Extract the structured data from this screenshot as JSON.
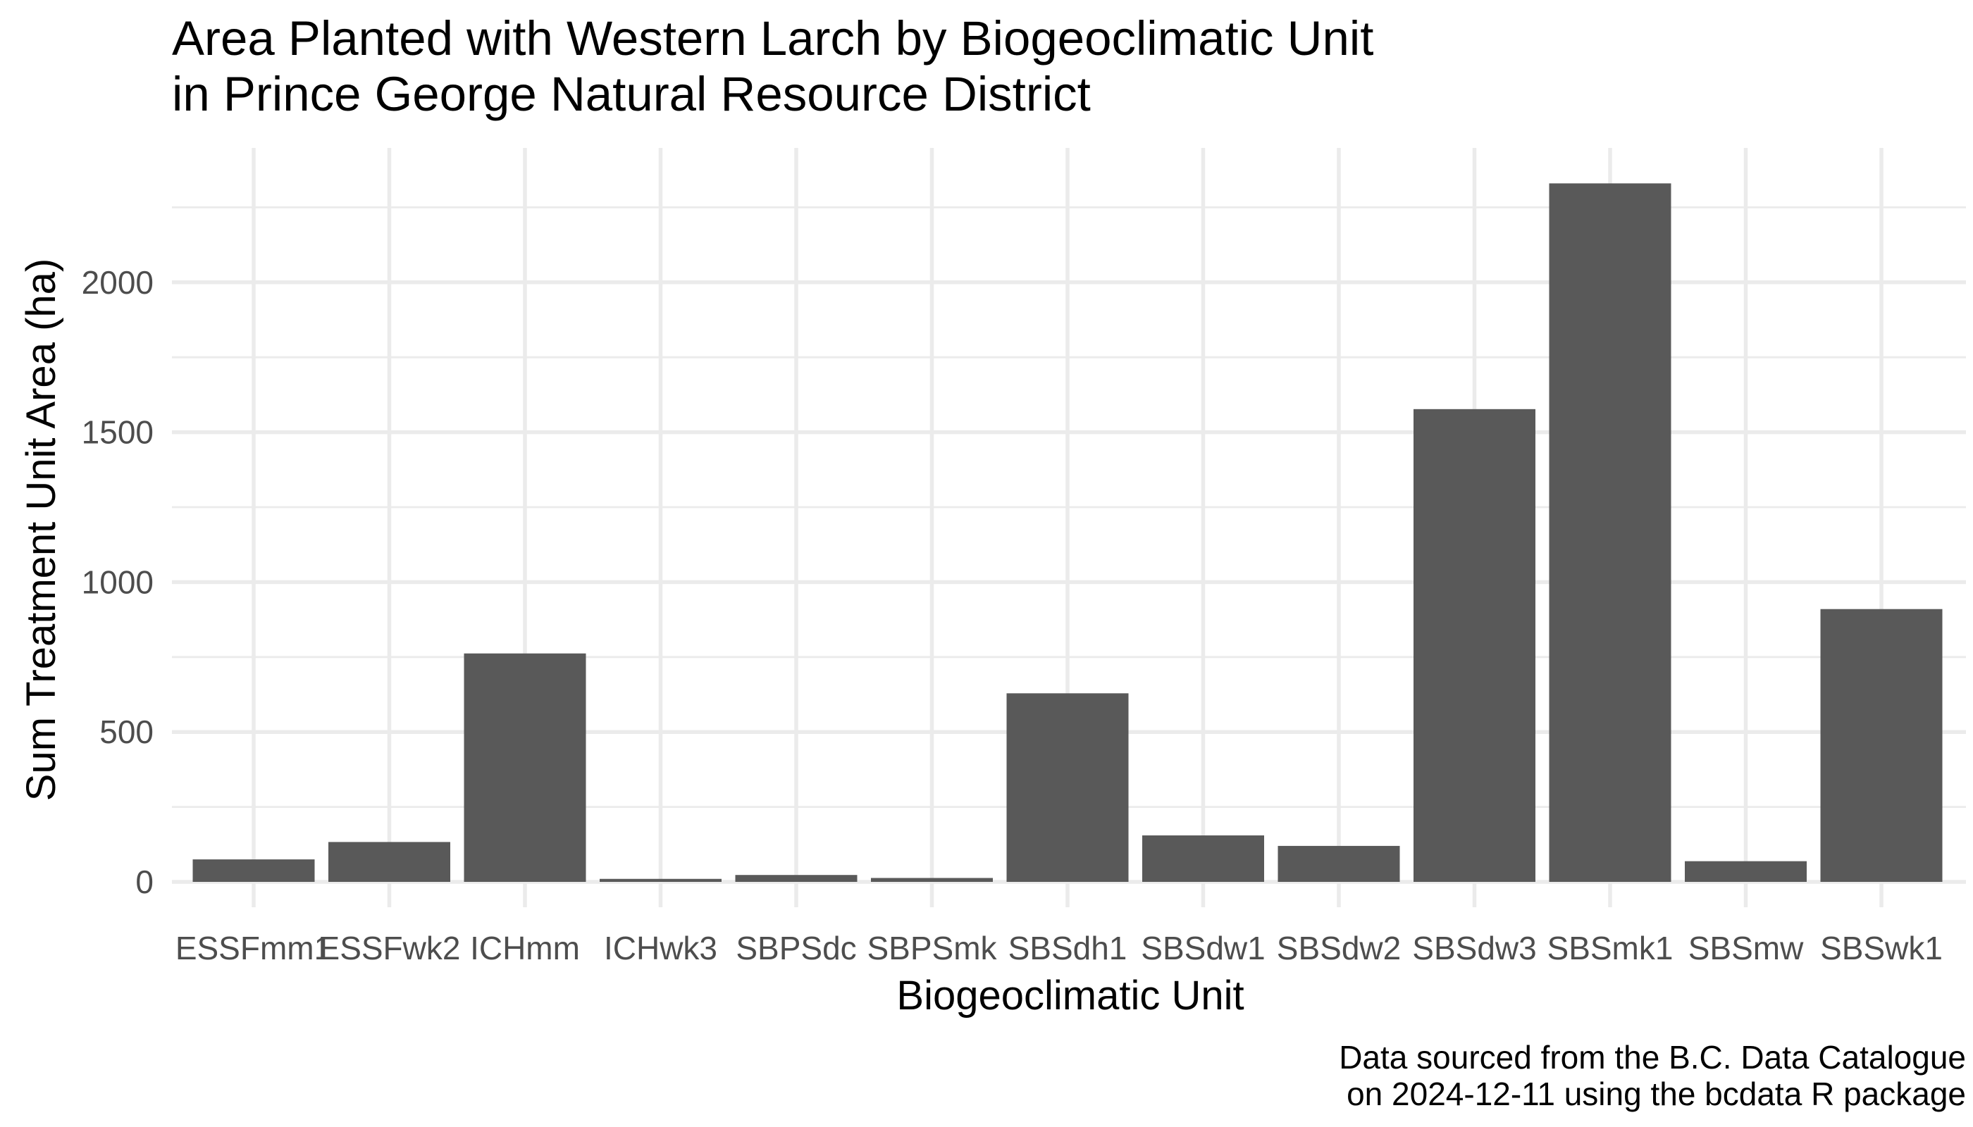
{
  "chart_data": {
    "type": "bar",
    "title": [
      "Area Planted with Western Larch by Biogeoclimatic Unit",
      "in Prince George Natural Resource District"
    ],
    "xlabel": "Biogeoclimatic Unit",
    "ylabel": "Sum Treatment Unit Area (ha)",
    "caption": [
      "Data sourced from the B.C. Data Catalogue",
      "on 2024-12-11 using the bcdata R package"
    ],
    "categories": [
      "ESSFmm1",
      "ESSFwk2",
      "ICHmm",
      "ICHwk3",
      "SBPSdc",
      "SBPSmk",
      "SBSdh1",
      "SBSdw1",
      "SBSdw2",
      "SBSdw3",
      "SBSmk1",
      "SBSmw",
      "SBSwk1"
    ],
    "values": [
      75,
      133,
      762,
      10,
      23,
      13,
      629,
      155,
      120,
      1577,
      2330,
      69,
      910
    ],
    "yticks": [
      0,
      500,
      1000,
      1500,
      2000
    ],
    "ylim": [
      0,
      2430
    ],
    "grid": true,
    "bar_color": "#595959",
    "grid_color": "#ebebeb"
  }
}
